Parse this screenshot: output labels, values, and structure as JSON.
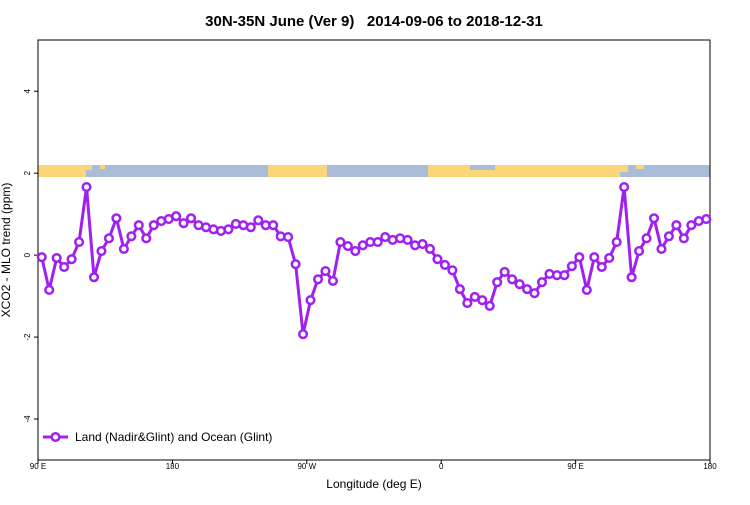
{
  "chart_data": {
    "type": "line",
    "title": "30N-35N June (Ver 9)   2014-09-06 to 2018-12-31",
    "xlabel": "Longitude (deg E)",
    "ylabel": "XCO2 - MLO trend (ppm)",
    "xlim": [
      90,
      540
    ],
    "ylim": [
      -5,
      5.25
    ],
    "xticks": [
      {
        "value": 90,
        "label": "90 E"
      },
      180,
      {
        "value": 270,
        "label": "90 W"
      },
      {
        "value": 360,
        "label": "0"
      },
      {
        "value": 450,
        "label": "90 E"
      },
      {
        "value": 540,
        "label": "180"
      }
    ],
    "yticks": [
      -4,
      -2,
      0,
      2,
      4
    ],
    "legend": "bottom-left",
    "x": [
      92.5,
      97.5,
      102.5,
      107.5,
      112.5,
      117.5,
      122.5,
      127.5,
      132.5,
      137.5,
      142.5,
      147.5,
      152.5,
      157.5,
      162.5,
      167.5,
      172.5,
      177.5,
      182.5,
      187.5,
      192.5,
      197.5,
      202.5,
      207.5,
      212.5,
      217.5,
      222.5,
      227.5,
      232.5,
      237.5,
      242.5,
      247.5,
      252.5,
      257.5,
      262.5,
      267.5,
      272.5,
      277.5,
      282.5,
      287.5,
      292.5,
      297.5,
      302.5,
      307.5,
      312.5,
      317.5,
      322.5,
      327.5,
      332.5,
      337.5,
      342.5,
      347.5,
      352.5,
      357.5,
      362.5,
      367.5,
      372.5,
      377.5,
      382.5,
      387.5,
      392.5,
      397.5,
      402.5,
      407.5,
      412.5,
      417.5,
      422.5,
      427.5,
      432.5,
      437.5,
      442.5,
      447.5,
      452.5,
      457.5,
      462.5,
      467.5,
      472.5,
      477.5,
      482.5,
      487.5,
      492.5,
      497.5,
      502.5,
      507.5,
      512.5,
      517.5,
      522.5,
      527.5,
      532.5,
      537.5
    ],
    "series": [
      {
        "name": "Land (Nadir&Glint) and Ocean (Glint)",
        "color": "#a020f0",
        "values": [
          -0.05,
          -0.85,
          -0.07,
          -0.29,
          -0.1,
          0.32,
          1.66,
          -0.54,
          0.1,
          0.41,
          0.9,
          0.15,
          0.46,
          0.73,
          0.41,
          0.73,
          0.83,
          0.88,
          0.95,
          0.78,
          0.9,
          0.73,
          0.68,
          0.63,
          0.59,
          0.63,
          0.76,
          0.73,
          0.68,
          0.85,
          0.73,
          0.73,
          0.46,
          0.44,
          -0.22,
          -1.93,
          -1.1,
          -0.59,
          -0.39,
          -0.63,
          0.32,
          0.22,
          0.1,
          0.24,
          0.32,
          0.32,
          0.44,
          0.37,
          0.41,
          0.37,
          0.24,
          0.27,
          0.15,
          -0.1,
          -0.24,
          -0.37,
          -0.83,
          -1.17,
          -1.02,
          -1.1,
          -1.24,
          -0.66,
          -0.41,
          -0.59,
          -0.71,
          -0.83,
          -0.93,
          -0.66,
          -0.46,
          -0.49,
          -0.49,
          -0.27,
          -0.05,
          -0.85,
          -0.05,
          -0.29,
          -0.07,
          0.32,
          1.66,
          -0.54,
          0.1,
          0.41,
          0.9,
          0.15,
          0.46,
          0.73,
          0.41,
          0.73,
          0.83,
          0.88
        ]
      }
    ]
  }
}
